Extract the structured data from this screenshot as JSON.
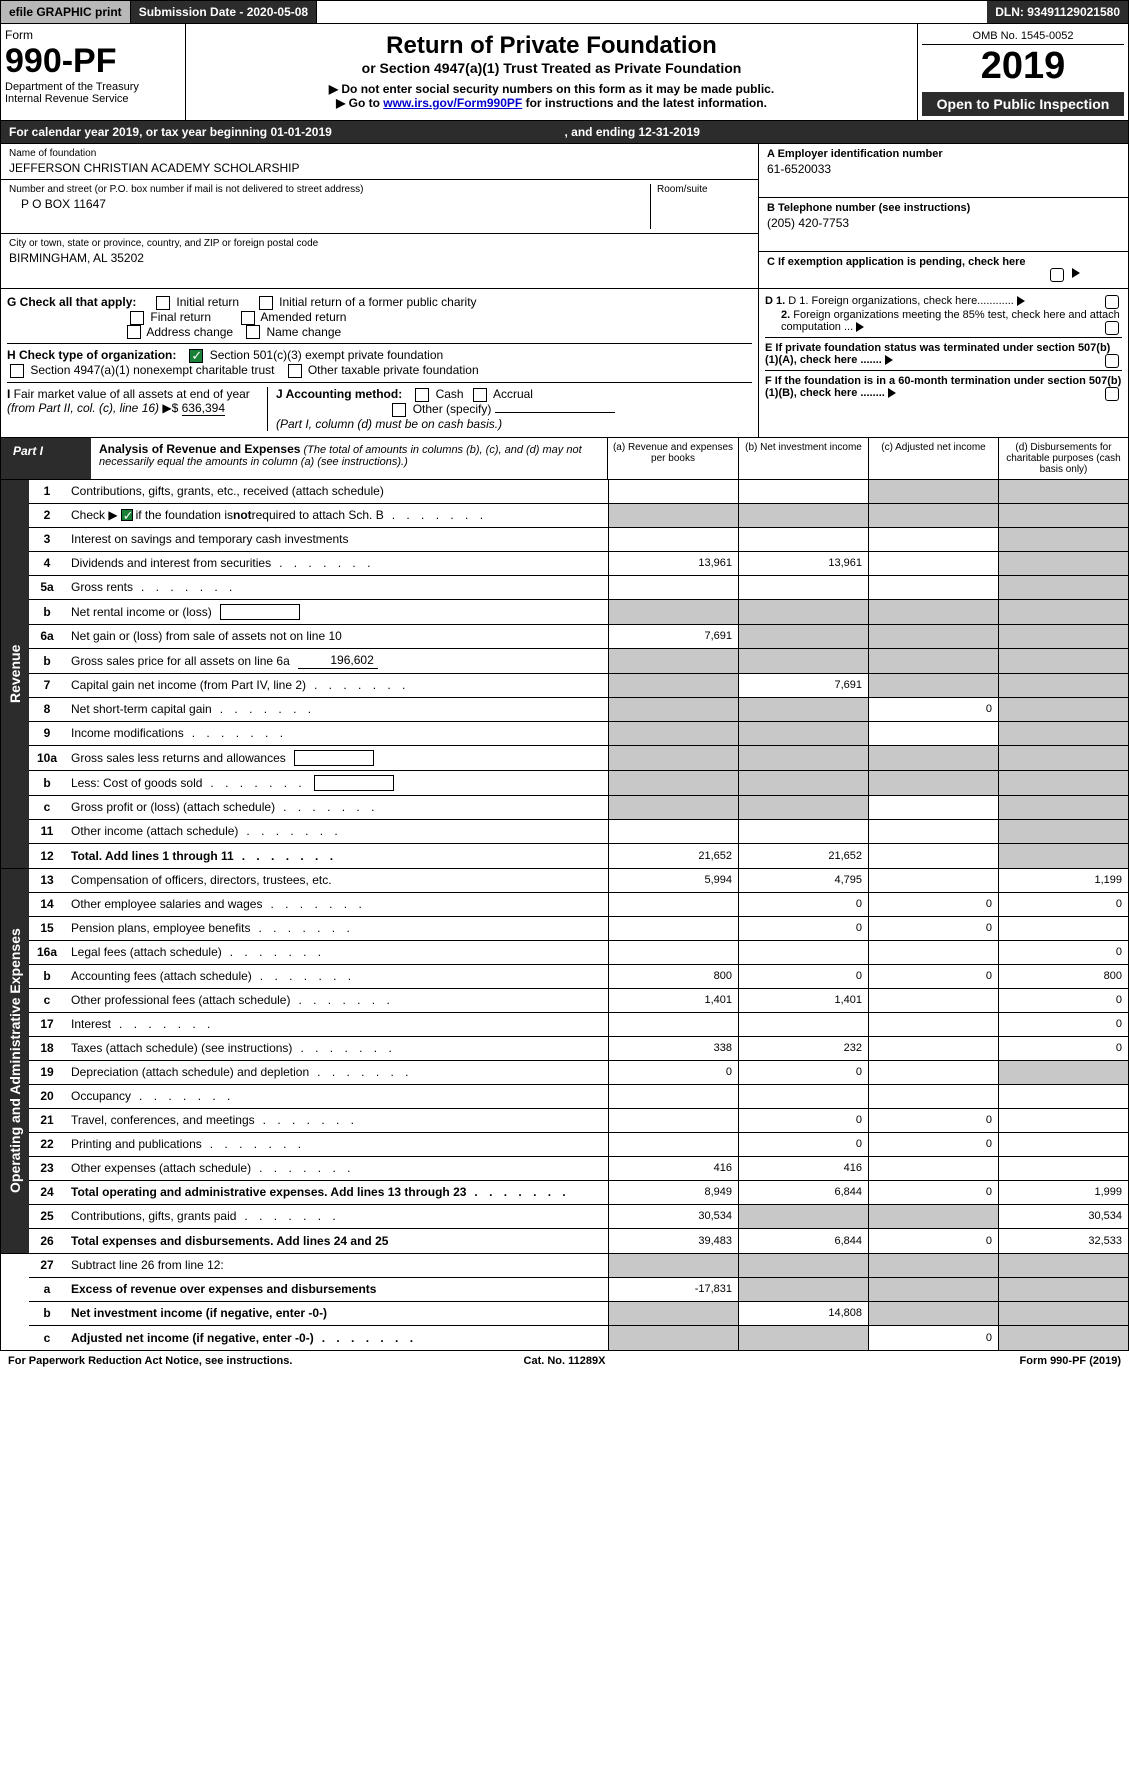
{
  "top": {
    "efile": "efile GRAPHIC print",
    "submission": "Submission Date - 2020-05-08",
    "dln": "DLN: 93491129021580"
  },
  "header": {
    "form_label": "Form",
    "form_no": "990-PF",
    "dept": "Department of the Treasury",
    "irs": "Internal Revenue Service",
    "title": "Return of Private Foundation",
    "subtitle": "or Section 4947(a)(1) Trust Treated as Private Foundation",
    "note1": "▶ Do not enter social security numbers on this form as it may be made public.",
    "note2_pre": "▶ Go to ",
    "note2_link": "www.irs.gov/Form990PF",
    "note2_post": " for instructions and the latest information.",
    "omb": "OMB No. 1545-0052",
    "year": "2019",
    "open": "Open to Public Inspection"
  },
  "cal": {
    "l": "For calendar year 2019, or tax year beginning 01-01-2019",
    "r": ", and ending 12-31-2019"
  },
  "info": {
    "name_label": "Name of foundation",
    "name": "JEFFERSON CHRISTIAN ACADEMY SCHOLARSHIP",
    "addr_label": "Number and street (or P.O. box number if mail is not delivered to street address)",
    "room_label": "Room/suite",
    "addr": "P O BOX 11647",
    "city_label": "City or town, state or province, country, and ZIP or foreign postal code",
    "city": "BIRMINGHAM, AL  35202",
    "a_label": "A Employer identification number",
    "a_val": "61-6520033",
    "b_label": "B Telephone number (see instructions)",
    "b_val": "(205) 420-7753",
    "c_label": "C If exemption application is pending, check here",
    "d1": "D 1. Foreign organizations, check here............",
    "d2": "2. Foreign organizations meeting the 85% test, check here and attach computation ...",
    "e": "E  If private foundation status was terminated under section 507(b)(1)(A), check here .......",
    "f": "F  If the foundation is in a 60-month termination under section 507(b)(1)(B), check here ........"
  },
  "g": {
    "label": "G Check all that apply:",
    "initial": "Initial return",
    "initial_former": "Initial return of a former public charity",
    "final": "Final return",
    "amended": "Amended return",
    "addr_change": "Address change",
    "name_change": "Name change"
  },
  "h": {
    "label": "H Check type of organization:",
    "s501": "Section 501(c)(3) exempt private foundation",
    "s4947": "Section 4947(a)(1) nonexempt charitable trust",
    "other": "Other taxable private foundation"
  },
  "i": {
    "label": "I Fair market value of all assets at end of year (from Part II, col. (c), line 16) ▶$",
    "val": "636,394"
  },
  "j": {
    "label": "J Accounting method:",
    "cash": "Cash",
    "accrual": "Accrual",
    "other": "Other (specify)",
    "note": "(Part I, column (d) must be on cash basis.)"
  },
  "part1": {
    "tab": "Part I",
    "title": "Analysis of Revenue and Expenses",
    "sub": "(The total of amounts in columns (b), (c), and (d) may not necessarily equal the amounts in column (a) (see instructions).)",
    "col_a": "(a)  Revenue and expenses per books",
    "col_b": "(b)  Net investment income",
    "col_c": "(c)  Adjusted net income",
    "col_d": "(d)  Disbursements for charitable purposes (cash basis only)"
  },
  "revenue_label": "Revenue",
  "expenses_label": "Operating and Administrative Expenses",
  "rows": [
    {
      "n": "1",
      "d": "Contributions, gifts, grants, etc., received (attach schedule)",
      "a": "",
      "b": "",
      "c": "g",
      "dd": "g"
    },
    {
      "n": "2",
      "d": "Check ▶ ☑ if the foundation is not required to attach Sch. B",
      "a": "g",
      "b": "g",
      "c": "g",
      "dd": "g",
      "dots": true,
      "bold_not": true
    },
    {
      "n": "3",
      "d": "Interest on savings and temporary cash investments",
      "a": "",
      "b": "",
      "c": "",
      "dd": "g"
    },
    {
      "n": "4",
      "d": "Dividends and interest from securities",
      "a": "13,961",
      "b": "13,961",
      "c": "",
      "dd": "g",
      "dots": true
    },
    {
      "n": "5a",
      "d": "Gross rents",
      "a": "",
      "b": "",
      "c": "",
      "dd": "g",
      "dots": true
    },
    {
      "n": "b",
      "d": "Net rental income or (loss)",
      "a": "g",
      "b": "g",
      "c": "g",
      "dd": "g",
      "inline": true
    },
    {
      "n": "6a",
      "d": "Net gain or (loss) from sale of assets not on line 10",
      "a": "7,691",
      "b": "g",
      "c": "g",
      "dd": "g"
    },
    {
      "n": "b",
      "d": "Gross sales price for all assets on line 6a",
      "a": "g",
      "b": "g",
      "c": "g",
      "dd": "g",
      "inline": true,
      "inline_val": "196,602"
    },
    {
      "n": "7",
      "d": "Capital gain net income (from Part IV, line 2)",
      "a": "g",
      "b": "7,691",
      "c": "g",
      "dd": "g",
      "dots": true
    },
    {
      "n": "8",
      "d": "Net short-term capital gain",
      "a": "g",
      "b": "g",
      "c": "0",
      "dd": "g",
      "dots": true
    },
    {
      "n": "9",
      "d": "Income modifications",
      "a": "g",
      "b": "g",
      "c": "",
      "dd": "g",
      "dots": true
    },
    {
      "n": "10a",
      "d": "Gross sales less returns and allowances",
      "a": "g",
      "b": "g",
      "c": "g",
      "dd": "g",
      "inline": true
    },
    {
      "n": "b",
      "d": "Less: Cost of goods sold",
      "a": "g",
      "b": "g",
      "c": "g",
      "dd": "g",
      "inline": true,
      "dots": true
    },
    {
      "n": "c",
      "d": "Gross profit or (loss) (attach schedule)",
      "a": "g",
      "b": "g",
      "c": "",
      "dd": "g",
      "dots": true
    },
    {
      "n": "11",
      "d": "Other income (attach schedule)",
      "a": "",
      "b": "",
      "c": "",
      "dd": "g",
      "dots": true
    },
    {
      "n": "12",
      "d": "Total. Add lines 1 through 11",
      "a": "21,652",
      "b": "21,652",
      "c": "",
      "dd": "g",
      "dots": true,
      "bold": true
    }
  ],
  "exp_rows": [
    {
      "n": "13",
      "d": "Compensation of officers, directors, trustees, etc.",
      "a": "5,994",
      "b": "4,795",
      "c": "",
      "dd": "1,199"
    },
    {
      "n": "14",
      "d": "Other employee salaries and wages",
      "a": "",
      "b": "0",
      "c": "0",
      "dd": "0",
      "dots": true
    },
    {
      "n": "15",
      "d": "Pension plans, employee benefits",
      "a": "",
      "b": "0",
      "c": "0",
      "dd": "",
      "dots": true
    },
    {
      "n": "16a",
      "d": "Legal fees (attach schedule)",
      "a": "",
      "b": "",
      "c": "",
      "dd": "0",
      "dots": true
    },
    {
      "n": "b",
      "d": "Accounting fees (attach schedule)",
      "a": "800",
      "b": "0",
      "c": "0",
      "dd": "800",
      "dots": true
    },
    {
      "n": "c",
      "d": "Other professional fees (attach schedule)",
      "a": "1,401",
      "b": "1,401",
      "c": "",
      "dd": "0",
      "dots": true
    },
    {
      "n": "17",
      "d": "Interest",
      "a": "",
      "b": "",
      "c": "",
      "dd": "0",
      "dots": true
    },
    {
      "n": "18",
      "d": "Taxes (attach schedule) (see instructions)",
      "a": "338",
      "b": "232",
      "c": "",
      "dd": "0",
      "dots": true
    },
    {
      "n": "19",
      "d": "Depreciation (attach schedule) and depletion",
      "a": "0",
      "b": "0",
      "c": "",
      "dd": "g",
      "dots": true
    },
    {
      "n": "20",
      "d": "Occupancy",
      "a": "",
      "b": "",
      "c": "",
      "dd": "",
      "dots": true
    },
    {
      "n": "21",
      "d": "Travel, conferences, and meetings",
      "a": "",
      "b": "0",
      "c": "0",
      "dd": "",
      "dots": true
    },
    {
      "n": "22",
      "d": "Printing and publications",
      "a": "",
      "b": "0",
      "c": "0",
      "dd": "",
      "dots": true
    },
    {
      "n": "23",
      "d": "Other expenses (attach schedule)",
      "a": "416",
      "b": "416",
      "c": "",
      "dd": "",
      "dots": true
    },
    {
      "n": "24",
      "d": "Total operating and administrative expenses. Add lines 13 through 23",
      "a": "8,949",
      "b": "6,844",
      "c": "0",
      "dd": "1,999",
      "dots": true,
      "bold": true
    },
    {
      "n": "25",
      "d": "Contributions, gifts, grants paid",
      "a": "30,534",
      "b": "g",
      "c": "g",
      "dd": "30,534",
      "dots": true
    },
    {
      "n": "26",
      "d": "Total expenses and disbursements. Add lines 24 and 25",
      "a": "39,483",
      "b": "6,844",
      "c": "0",
      "dd": "32,533",
      "bold": true
    }
  ],
  "final_rows": [
    {
      "n": "27",
      "d": "Subtract line 26 from line 12:",
      "a": "g",
      "b": "g",
      "c": "g",
      "dd": "g"
    },
    {
      "n": "a",
      "d": "Excess of revenue over expenses and disbursements",
      "a": "-17,831",
      "b": "g",
      "c": "g",
      "dd": "g",
      "bold": true
    },
    {
      "n": "b",
      "d": "Net investment income (if negative, enter -0-)",
      "a": "g",
      "b": "14,808",
      "c": "g",
      "dd": "g",
      "bold": true
    },
    {
      "n": "c",
      "d": "Adjusted net income (if negative, enter -0-)",
      "a": "g",
      "b": "g",
      "c": "0",
      "dd": "g",
      "bold": true,
      "dots": true
    }
  ],
  "footer": {
    "l": "For Paperwork Reduction Act Notice, see instructions.",
    "c": "Cat. No. 11289X",
    "r": "Form 990-PF (2019)"
  }
}
